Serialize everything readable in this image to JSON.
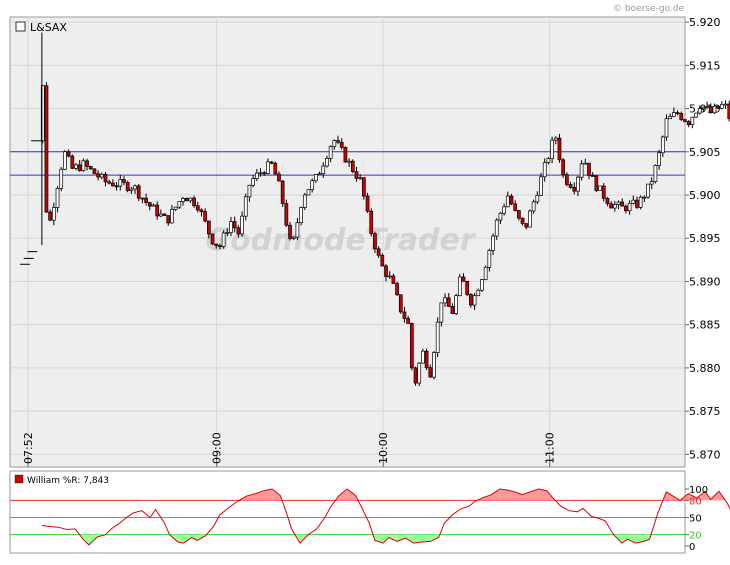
{
  "source_label": "© boerse-go.de",
  "watermark": "GodmodeTrader",
  "chart_data": [
    {
      "type": "candlestick",
      "title": "L&SAX",
      "legend_placement": "top-left",
      "grid": true,
      "ylim": [
        5.869,
        5.921
      ],
      "y_ticks": [
        5.87,
        5.875,
        5.88,
        5.885,
        5.89,
        5.895,
        5.9,
        5.905,
        5.91,
        5.915,
        5.92
      ],
      "y_tick_labels": [
        "5.870",
        "5.875",
        "5.880",
        "5.885",
        "5.890",
        "5.895",
        "5.900",
        "5.905",
        "5.910",
        "5.915",
        "5.920"
      ],
      "x_ticks": [
        "07:52",
        "09:00",
        "10:00",
        "11:00"
      ],
      "horizontal_lines": [
        5.905,
        5.9023
      ],
      "colors": {
        "up": "#ffffff",
        "down": "#cc0000",
        "outline": "#000000",
        "hline": "#3333cc",
        "panel": "#eeeeee"
      },
      "summary_path": [
        [
          "07:52",
          5.892
        ],
        [
          "07:55",
          5.8942
        ],
        [
          "07:57",
          5.9188
        ],
        [
          "07:58",
          5.899
        ],
        [
          "08:00",
          5.897
        ],
        [
          "08:05",
          5.905
        ],
        [
          "08:08",
          5.903
        ],
        [
          "08:12",
          5.9035
        ],
        [
          "08:20",
          5.9015
        ],
        [
          "08:30",
          5.901
        ],
        [
          "08:35",
          5.899
        ],
        [
          "08:42",
          5.897
        ],
        [
          "08:48",
          5.9
        ],
        [
          "08:53",
          5.899
        ],
        [
          "08:58",
          5.895
        ],
        [
          "09:01",
          5.894
        ],
        [
          "09:05",
          5.897
        ],
        [
          "09:08",
          5.8955
        ],
        [
          "09:12",
          5.9015
        ],
        [
          "09:17",
          5.903
        ],
        [
          "09:20",
          5.9035
        ],
        [
          "09:23",
          5.9005
        ],
        [
          "09:27",
          5.8935
        ],
        [
          "09:31",
          5.9
        ],
        [
          "09:36",
          5.902
        ],
        [
          "09:42",
          5.9065
        ],
        [
          "09:46",
          5.9045
        ],
        [
          "09:52",
          5.9015
        ],
        [
          "09:55",
          5.8965
        ],
        [
          "09:59",
          5.892
        ],
        [
          "10:03",
          5.89
        ],
        [
          "10:06",
          5.887
        ],
        [
          "10:09",
          5.885
        ],
        [
          "10:11",
          5.8775
        ],
        [
          "10:14",
          5.882
        ],
        [
          "10:17",
          5.8795
        ],
        [
          "10:21",
          5.888
        ],
        [
          "10:25",
          5.8865
        ],
        [
          "10:28",
          5.8905
        ],
        [
          "10:32",
          5.8875
        ],
        [
          "10:36",
          5.891
        ],
        [
          "10:41",
          5.897
        ],
        [
          "10:45",
          5.9
        ],
        [
          "10:48",
          5.8975
        ],
        [
          "10:51",
          5.896
        ],
        [
          "10:56",
          5.901
        ],
        [
          "10:59",
          5.904
        ],
        [
          "11:02",
          5.907
        ],
        [
          "11:05",
          5.902
        ],
        [
          "11:09",
          5.901
        ],
        [
          "11:12",
          5.9045
        ],
        [
          "11:15",
          5.902
        ],
        [
          "11:18",
          5.9005
        ],
        [
          "11:22",
          5.899
        ],
        [
          "11:26",
          5.8985
        ],
        [
          "11:32",
          5.899
        ],
        [
          "11:36",
          5.901
        ],
        [
          "11:39",
          5.904
        ],
        [
          "11:42",
          5.9085
        ],
        [
          "11:46",
          5.9095
        ],
        [
          "11:50",
          5.9085
        ],
        [
          "11:54",
          5.9105
        ],
        [
          "11:58",
          5.9095
        ],
        [
          "12:03",
          5.9105
        ],
        [
          "12:07",
          5.907
        ],
        [
          "12:09",
          5.9045
        ],
        [
          "12:10",
          5.9015
        ],
        [
          "12:11",
          5.9005
        ]
      ]
    },
    {
      "type": "line",
      "title": "William %R: 7,843",
      "ylim": [
        0,
        100
      ],
      "y_ticks": [
        0,
        20,
        50,
        80,
        100
      ],
      "y_tick_labels": [
        "0",
        "20",
        "50",
        "80",
        "100"
      ],
      "reference_lines": [
        20,
        50,
        80
      ],
      "colors": {
        "line": "#dd0000",
        "overbought_fill": "#ff9999",
        "oversold_fill": "#99ff99",
        "line80": "#dd3333",
        "line50": "#888888",
        "line20": "#33cc33"
      },
      "series": [
        {
          "values": [
            [
              "07:57",
              36
            ],
            [
              "08:00",
              34
            ],
            [
              "08:03",
              33
            ],
            [
              "08:06",
              29
            ],
            [
              "08:09",
              30
            ],
            [
              "08:12",
              11
            ],
            [
              "08:14",
              2
            ],
            [
              "08:17",
              16
            ],
            [
              "08:20",
              20
            ],
            [
              "08:22",
              30
            ],
            [
              "08:25",
              40
            ],
            [
              "08:28",
              52
            ],
            [
              "08:30",
              58
            ],
            [
              "08:33",
              62
            ],
            [
              "08:36",
              50
            ],
            [
              "08:38",
              64
            ],
            [
              "08:41",
              42
            ],
            [
              "08:43",
              20
            ],
            [
              "08:46",
              7
            ],
            [
              "08:48",
              5
            ],
            [
              "08:51",
              15
            ],
            [
              "08:53",
              10
            ],
            [
              "08:56",
              18
            ],
            [
              "08:59",
              35
            ],
            [
              "09:01",
              54
            ],
            [
              "09:04",
              66
            ],
            [
              "09:08",
              80
            ],
            [
              "09:11",
              88
            ],
            [
              "09:14",
              92
            ],
            [
              "09:17",
              97
            ],
            [
              "09:20",
              100
            ],
            [
              "09:23",
              88
            ],
            [
              "09:25",
              60
            ],
            [
              "09:27",
              30
            ],
            [
              "09:30",
              5
            ],
            [
              "09:33",
              20
            ],
            [
              "09:36",
              30
            ],
            [
              "09:39",
              50
            ],
            [
              "09:41",
              68
            ],
            [
              "09:44",
              88
            ],
            [
              "09:47",
              100
            ],
            [
              "09:50",
              89
            ],
            [
              "09:52",
              70
            ],
            [
              "09:55",
              40
            ],
            [
              "09:57",
              10
            ],
            [
              "10:00",
              5
            ],
            [
              "10:02",
              15
            ],
            [
              "10:05",
              8
            ],
            [
              "10:08",
              14
            ],
            [
              "10:11",
              5
            ],
            [
              "10:14",
              7
            ],
            [
              "10:17",
              8
            ],
            [
              "10:20",
              15
            ],
            [
              "10:22",
              40
            ],
            [
              "10:25",
              55
            ],
            [
              "10:28",
              65
            ],
            [
              "10:31",
              70
            ],
            [
              "10:33",
              78
            ],
            [
              "10:36",
              85
            ],
            [
              "10:39",
              90
            ],
            [
              "10:42",
              100
            ],
            [
              "10:45",
              98
            ],
            [
              "10:48",
              94
            ],
            [
              "10:50",
              90
            ],
            [
              "10:53",
              95
            ],
            [
              "10:56",
              100
            ],
            [
              "10:59",
              97
            ],
            [
              "11:01",
              85
            ],
            [
              "11:04",
              70
            ],
            [
              "11:07",
              62
            ],
            [
              "11:10",
              60
            ],
            [
              "11:12",
              66
            ],
            [
              "11:15",
              52
            ],
            [
              "11:18",
              48
            ],
            [
              "11:20",
              44
            ],
            [
              "11:23",
              20
            ],
            [
              "11:26",
              5
            ],
            [
              "11:28",
              12
            ],
            [
              "11:31",
              5
            ],
            [
              "11:34",
              8
            ],
            [
              "11:36",
              12
            ],
            [
              "11:39",
              58
            ],
            [
              "11:42",
              95
            ],
            [
              "11:45",
              86
            ],
            [
              "11:47",
              80
            ],
            [
              "11:50",
              92
            ],
            [
              "11:53",
              84
            ],
            [
              "11:56",
              96
            ],
            [
              "11:58",
              82
            ],
            [
              "12:01",
              96
            ],
            [
              "12:04",
              75
            ],
            [
              "12:07",
              45
            ],
            [
              "12:10",
              8
            ]
          ]
        }
      ]
    }
  ]
}
